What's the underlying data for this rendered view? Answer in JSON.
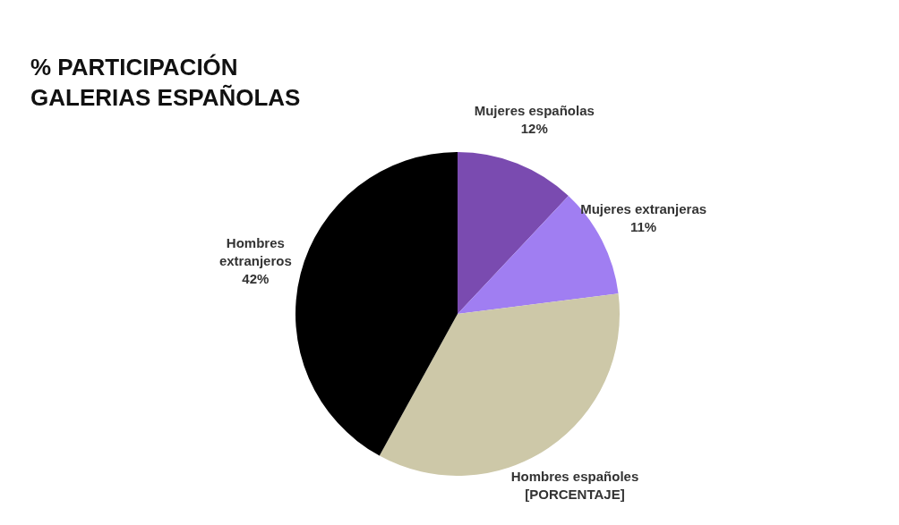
{
  "chart_data": {
    "type": "pie",
    "title": "% PARTICIPACIÓN GALERIAS ESPAÑOLAS",
    "categories": [
      "Mujeres españolas",
      "Mujeres extranjeras",
      "Hombres españoles",
      "Hombres extranjeros"
    ],
    "values": [
      12,
      11,
      35,
      42
    ],
    "colors": [
      "#7a4bb0",
      "#a07ef2",
      "#cdc8a8",
      "#000000"
    ],
    "value_labels": [
      "12%",
      "11%",
      "[PORCENTAJE]",
      "42%"
    ],
    "legend": false
  }
}
